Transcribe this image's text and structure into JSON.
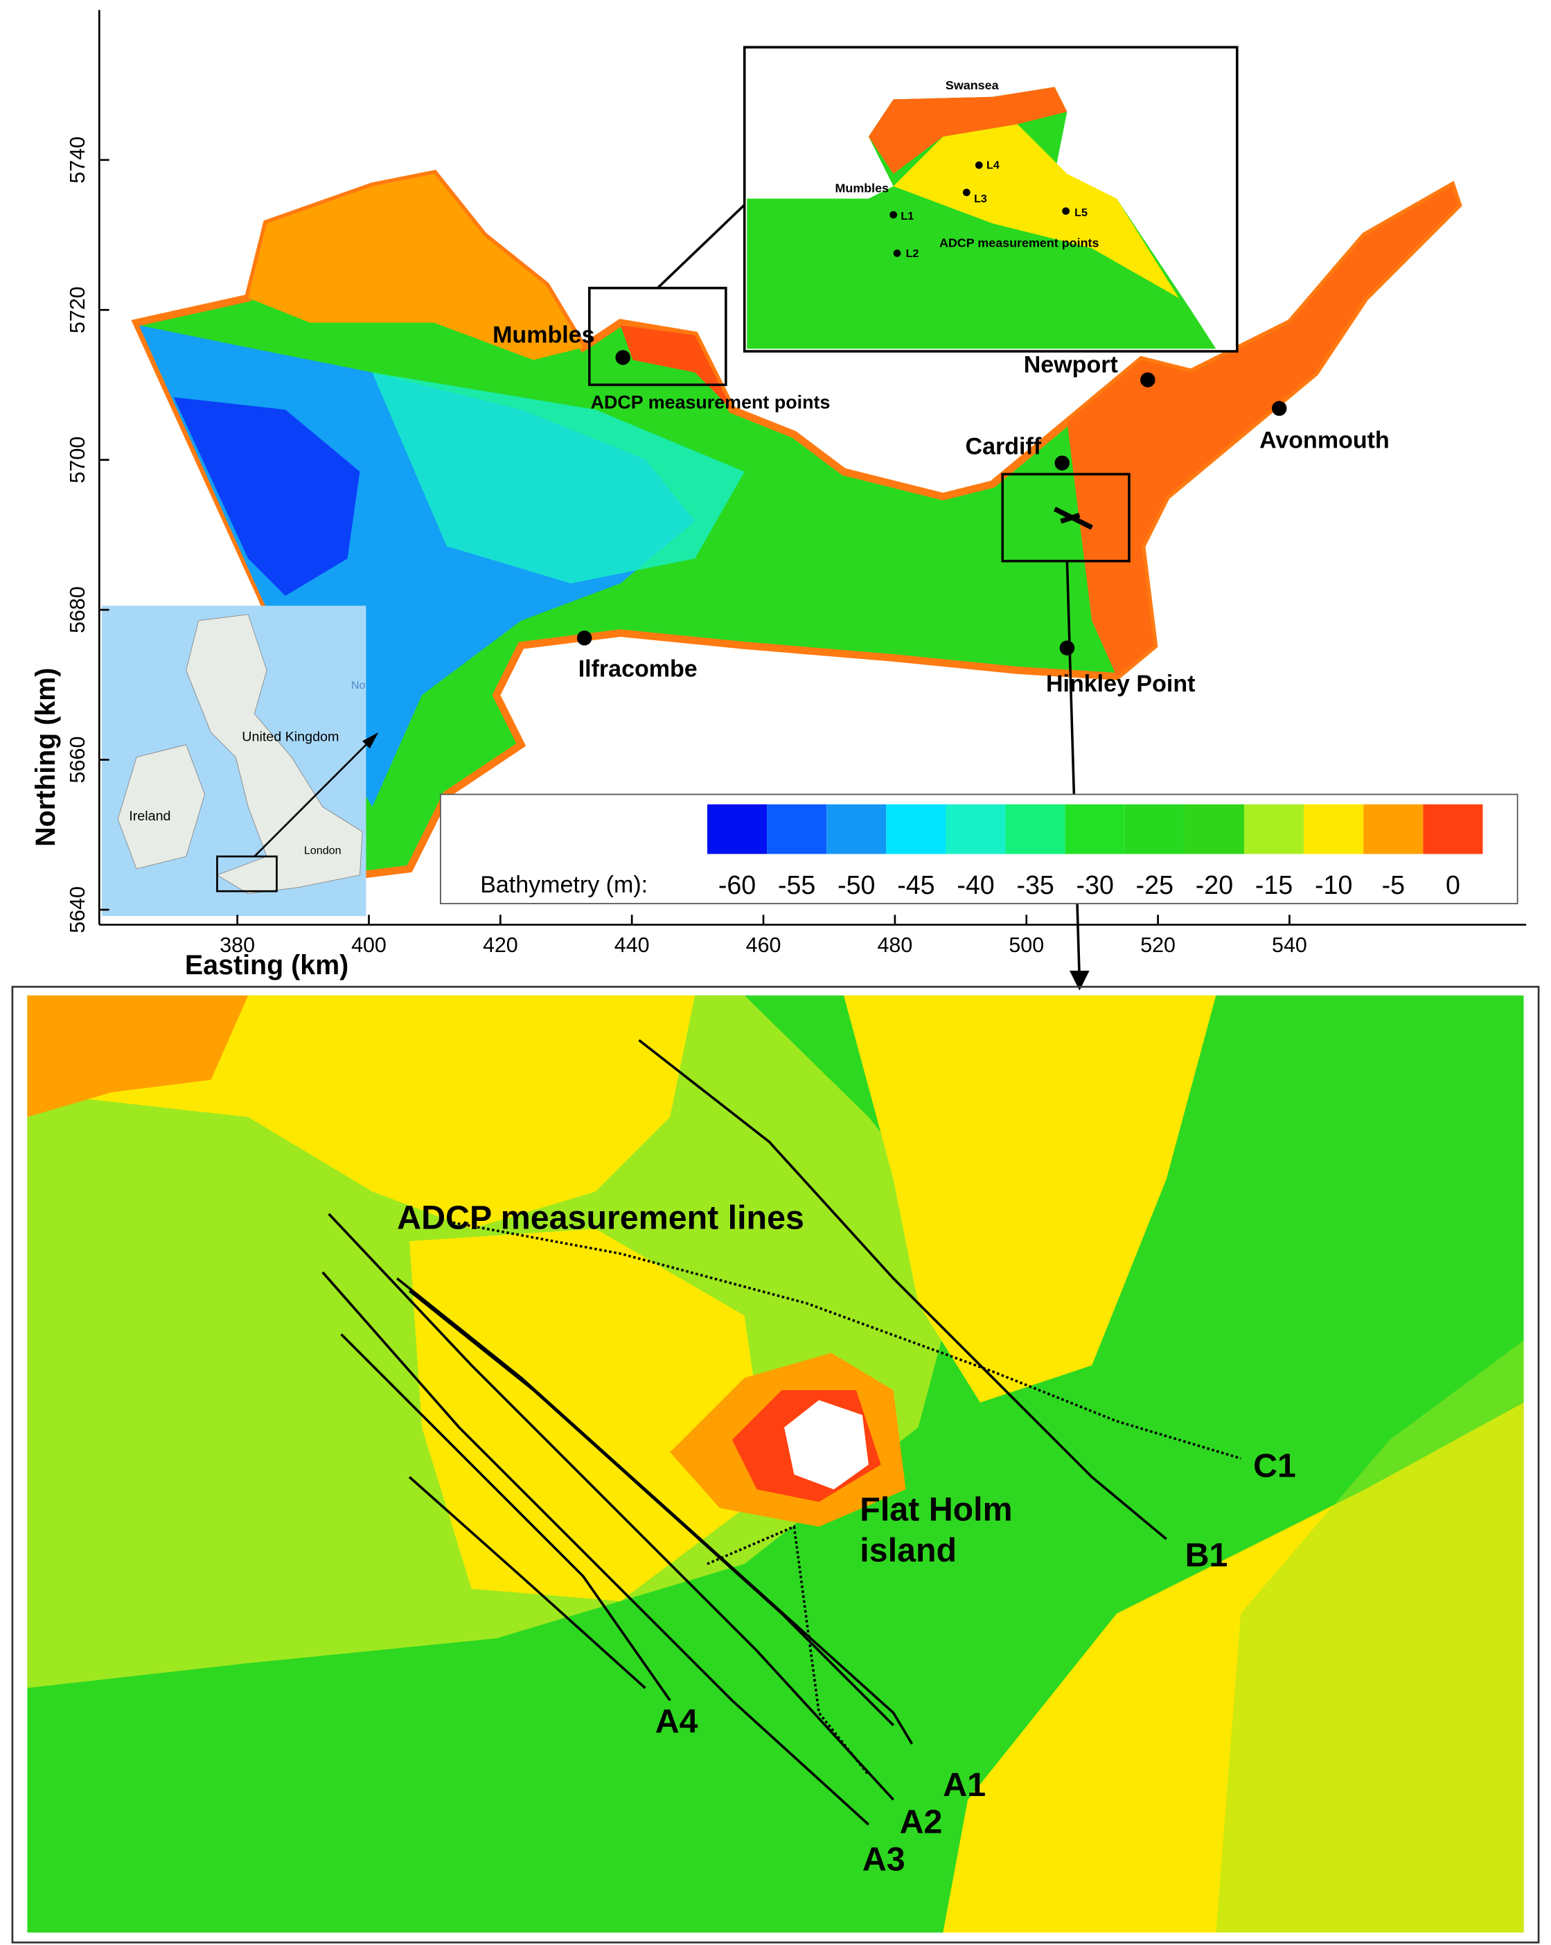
{
  "map": {
    "x_label": "Easting (km)",
    "y_label": "Northing (km)",
    "xlim": [
      359,
      576
    ],
    "ylim": [
      5638,
      5760
    ],
    "xticks": [
      380,
      400,
      420,
      440,
      460,
      480,
      500,
      520,
      540
    ],
    "yticks": [
      5640,
      5660,
      5680,
      5700,
      5720,
      5740
    ],
    "places": [
      "Mumbles",
      "ADCP measurement points",
      "Newport",
      "Cardiff",
      "Avonmouth",
      "Ilfracombe",
      "Hinkley Point"
    ],
    "zoom_inset": {
      "labels": [
        "Swansea",
        "Mumbles",
        "L1",
        "L2",
        "L3",
        "L4",
        "L5",
        "ADCP measurement points"
      ]
    },
    "uk_inset": {
      "labels": [
        "United Kingdom",
        "Ireland",
        "London",
        "No"
      ]
    },
    "colorbar": {
      "label": "Bathymetry (m):",
      "ticks": [
        -60,
        -55,
        -50,
        -45,
        -40,
        -35,
        -30,
        -25,
        -20,
        -15,
        -10,
        -5,
        0
      ],
      "colors": [
        "#0010f0",
        "#0a5cff",
        "#1496f4",
        "#00e4ff",
        "#18f0c8",
        "#14f07a",
        "#22e026",
        "#26d81e",
        "#30d418",
        "#a8ee20",
        "#ffe800",
        "#ffa000",
        "#ff4010"
      ]
    }
  },
  "detail": {
    "title": "ADCP measurement lines",
    "island": [
      "Flat Holm",
      "island"
    ],
    "line_labels": [
      "C1",
      "B1",
      "A1",
      "A2",
      "A3",
      "A4"
    ]
  }
}
